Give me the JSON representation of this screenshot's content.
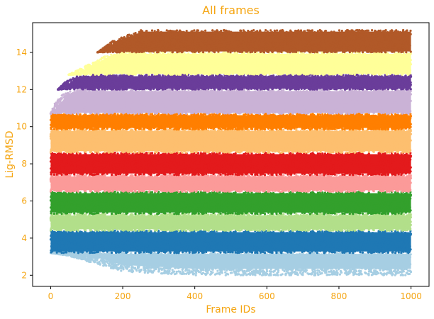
{
  "chart_data": {
    "type": "scatter",
    "title": "All frames",
    "xlabel": "Frame IDs",
    "ylabel": "Lig-RMSD",
    "xlim": [
      -50,
      1050
    ],
    "ylim": [
      1.4,
      15.6
    ],
    "xticks": [
      0,
      200,
      400,
      600,
      800,
      1000
    ],
    "yticks": [
      2,
      4,
      6,
      8,
      10,
      12,
      14
    ],
    "x_range": [
      0,
      1000
    ],
    "grid": false,
    "legend": "none",
    "text_color": "#f5a511",
    "series": [
      {
        "band": [
          2.0,
          3.2
        ],
        "color": "#a6cee3",
        "top_edge": [
          [
            0,
            3.2
          ],
          [
            50,
            3.05
          ],
          [
            200,
            2.2
          ],
          [
            400,
            2.0
          ],
          [
            1000,
            2.0
          ]
        ],
        "bottom_edge": [
          [
            0,
            3.2
          ],
          [
            1000,
            3.2
          ]
        ]
      },
      {
        "band": [
          3.2,
          4.4
        ],
        "color": "#1f78b4"
      },
      {
        "band": [
          4.4,
          5.3
        ],
        "color": "#b2df8a"
      },
      {
        "band": [
          5.3,
          6.5
        ],
        "color": "#33a02c"
      },
      {
        "band": [
          6.5,
          7.4
        ],
        "color": "#fb9a99"
      },
      {
        "band": [
          7.4,
          8.6
        ],
        "color": "#e31a1c"
      },
      {
        "band": [
          8.6,
          9.85
        ],
        "color": "#fdbf6f"
      },
      {
        "band": [
          9.85,
          10.7
        ],
        "color": "#ff7f00"
      },
      {
        "band": [
          10.7,
          12.0
        ],
        "color": "#cab2d6",
        "start_edge": [
          [
            0,
            10.7
          ],
          [
            10,
            11.2
          ],
          [
            30,
            11.7
          ],
          [
            60,
            12.0
          ]
        ]
      },
      {
        "band": [
          12.0,
          12.8
        ],
        "color": "#6a3d9a",
        "start_edge": [
          [
            20,
            12.0
          ],
          [
            40,
            12.4
          ],
          [
            80,
            12.8
          ]
        ]
      },
      {
        "band": [
          12.8,
          14.0
        ],
        "color": "#ffff99",
        "start_edge": [
          [
            50,
            12.8
          ],
          [
            100,
            13.3
          ],
          [
            150,
            13.8
          ],
          [
            200,
            14.0
          ]
        ]
      },
      {
        "band": [
          14.0,
          15.2
        ],
        "color": "#b15928",
        "start_edge": [
          [
            130,
            14.0
          ],
          [
            170,
            14.6
          ],
          [
            250,
            15.2
          ]
        ]
      }
    ]
  }
}
